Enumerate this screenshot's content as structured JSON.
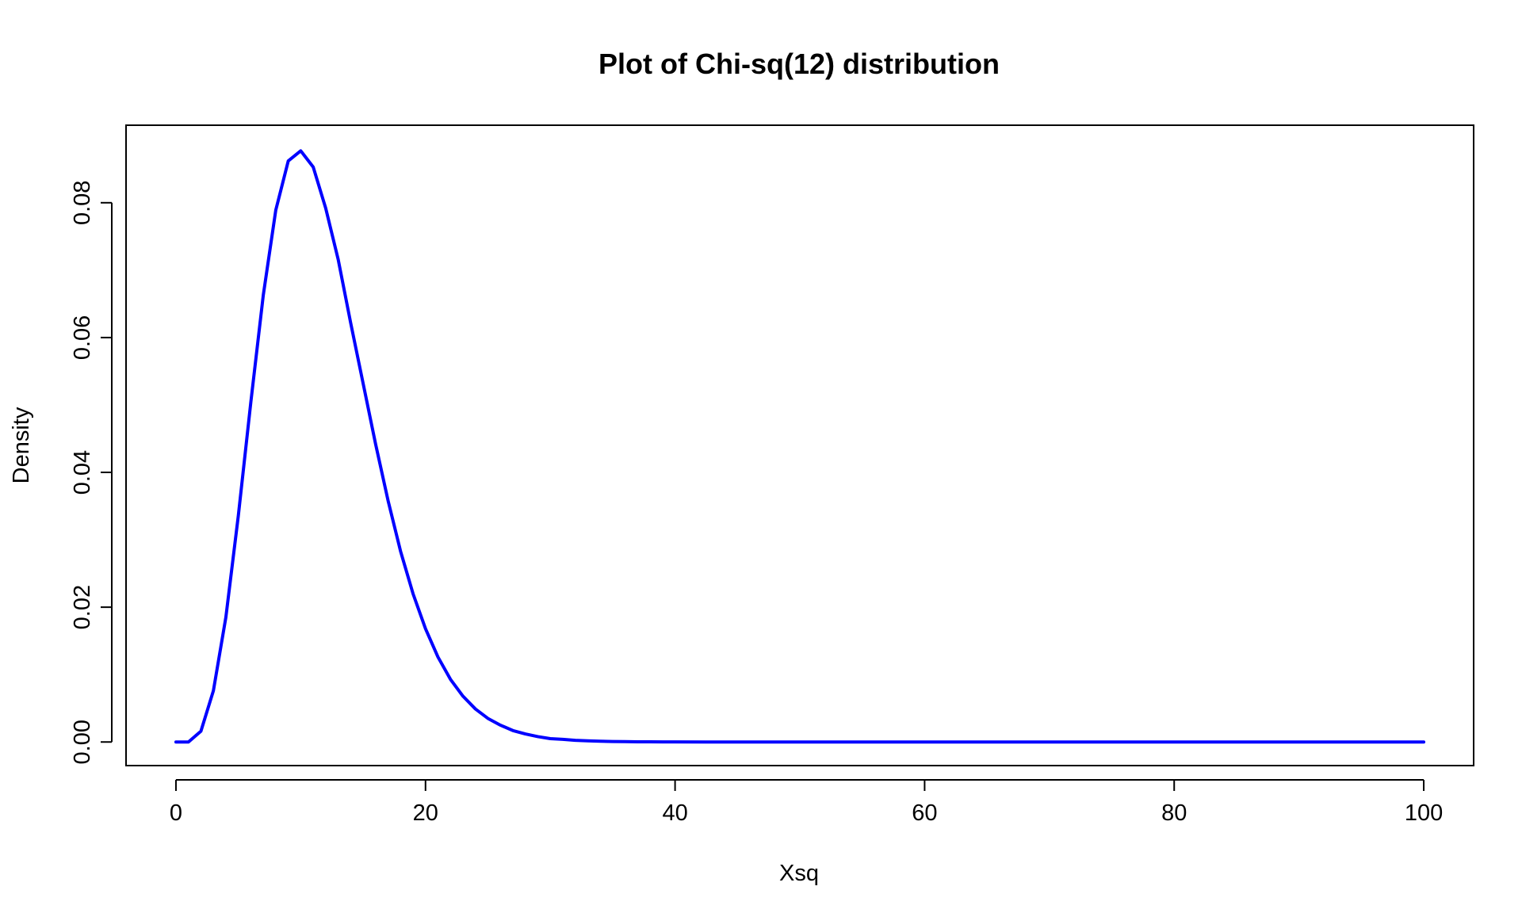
{
  "chart_data": {
    "type": "line",
    "title": "Plot of Chi-sq(12) distribution",
    "xlabel": "Xsq",
    "ylabel": "Density",
    "xlim": [
      -4,
      104
    ],
    "ylim": [
      -0.0035,
      0.0915
    ],
    "x_ticks": [
      0,
      20,
      40,
      60,
      80,
      100
    ],
    "x_tick_labels": [
      "0",
      "20",
      "40",
      "60",
      "80",
      "100"
    ],
    "y_ticks": [
      0.0,
      0.02,
      0.04,
      0.06,
      0.08
    ],
    "y_tick_labels": [
      "0.00",
      "0.02",
      "0.04",
      "0.06",
      "0.08"
    ],
    "grid": false,
    "legend": "none",
    "series": [
      {
        "color": "#0000ff",
        "x": [
          0,
          1,
          2,
          3,
          4,
          5,
          6,
          7,
          8,
          9,
          10,
          11,
          12,
          13,
          14,
          15,
          16,
          17,
          18,
          19,
          20,
          21,
          22,
          23,
          24,
          25,
          26,
          27,
          28,
          29,
          30,
          31,
          32,
          33,
          34,
          35,
          36,
          37,
          38,
          39,
          40,
          45,
          50,
          55,
          60,
          65,
          70,
          75,
          80,
          85,
          90,
          95,
          100
        ],
        "y": [
          0.0,
          1e-06,
          0.0016,
          0.0076,
          0.0185,
          0.0336,
          0.0504,
          0.0663,
          0.0789,
          0.0862,
          0.0877,
          0.0853,
          0.0792,
          0.0716,
          0.0622,
          0.0532,
          0.0442,
          0.0358,
          0.0283,
          0.022,
          0.0168,
          0.0126,
          0.0093,
          0.0068,
          0.0049,
          0.0035,
          0.0025,
          0.0017,
          0.0012,
          0.0008,
          0.0005,
          0.0004,
          0.00025,
          0.00017,
          0.00011,
          7e-05,
          5e-05,
          3e-05,
          2e-05,
          1e-05,
          9e-06,
          1e-06,
          0.0,
          0.0,
          0.0,
          0.0,
          0.0,
          0.0,
          0.0,
          0.0,
          0.0,
          0.0,
          0.0
        ]
      }
    ]
  }
}
